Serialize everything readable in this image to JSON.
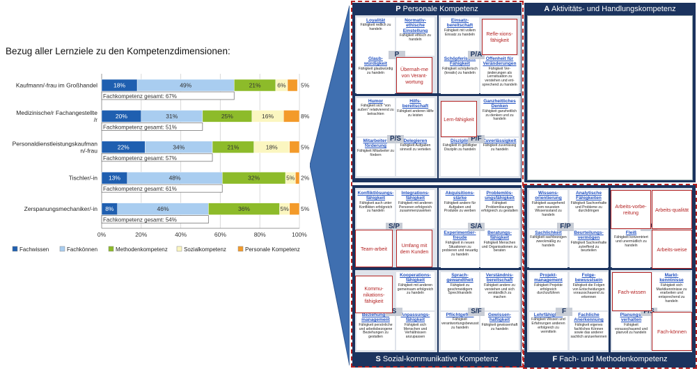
{
  "intro_text": "Bezug aller Lernziele zu den Kompetenzdimensionen:",
  "chart_data": {
    "type": "bar",
    "orientation": "horizontal",
    "stacked": true,
    "categories": [
      "Kaufmann/-frau im Großhandel",
      "Medizinische/r Fachangestellte/r",
      "Personaldienstleistungskaufman n/-frau",
      "Tischler/-in",
      "Zerspanungsmechaniker/-in"
    ],
    "series": [
      {
        "name": "Fachwissen",
        "color": "#1f5fb0",
        "values": [
          18,
          20,
          22,
          13,
          8
        ],
        "labels": [
          "18%",
          "20%",
          "22%",
          "13%",
          "8%"
        ]
      },
      {
        "name": "Fachkönnen",
        "color": "#a9cdf0",
        "values": [
          49,
          31,
          34,
          48,
          46
        ],
        "labels": [
          "49%",
          "31%",
          "34%",
          "48%",
          "46%"
        ]
      },
      {
        "name": "Methodenkompetenz",
        "color": "#8dbb2a",
        "values": [
          21,
          25,
          21,
          32,
          36
        ],
        "labels": [
          "21%",
          "25%",
          "21%",
          "32%",
          "36%"
        ]
      },
      {
        "name": "Sozialkompetenz",
        "color": "#fbf6c0",
        "values": [
          6,
          16,
          18,
          5,
          5
        ],
        "labels": [
          "6%",
          "16%",
          "18%",
          "5%",
          "5%"
        ]
      },
      {
        "name": "Personale Kompetenz",
        "color": "#f39a2a",
        "values": [
          5,
          8,
          5,
          2,
          5
        ],
        "labels": [
          "5%",
          "8%",
          "5%",
          "2%",
          "5%"
        ]
      }
    ],
    "subtotals": [
      "Fachkompetenz gesamt: 67%",
      "Fachkompetenz gesamt: 51%",
      "Fachkompetenz gesamt: 57%",
      "Fachkompetenz gesamt: 61%",
      "Fachkompetenz gesamt: 54%"
    ],
    "xticks": [
      "0%",
      "20%",
      "40%",
      "60%",
      "80%",
      "100%"
    ],
    "xlim": [
      0,
      100
    ],
    "grid": true,
    "legend_position": "bottom"
  },
  "competence": {
    "quadrants": {
      "P": {
        "letter": "P",
        "title": "Personale Kompetenz"
      },
      "A": {
        "letter": "A",
        "title": "Aktivitäts- und Handlungskompetenz"
      },
      "S": {
        "letter": "S",
        "title": "Sozial-kommunikative Kompetenz"
      },
      "F": {
        "letter": "F",
        "title": "Fach- und Methodenkompetenz"
      }
    },
    "codes": [
      "P",
      "P/A",
      "P/S",
      "P/F",
      "S/P",
      "S/A",
      "S",
      "S/F",
      "F/P",
      "F/A",
      "F",
      "F/S"
    ],
    "cells": [
      {
        "t": "Loyalität",
        "d": "Fähigkeit redlich zu handeln"
      },
      {
        "t": "Normativ-ethische Einstellung",
        "d": "Fähigkeit ethisch zu handeln"
      },
      {
        "t": "Einsatz-bereitschaft",
        "d": "Fähigkeit mit vollem Einsatz zu handeln"
      },
      {
        "t": "Glaub-würdigkeit",
        "d": "Fähigkeit glaubwürdig zu handeln"
      },
      {
        "t": "Schöpferische Fähigkeit",
        "d": "Fähigkeit schöpferisch (kreativ) zu handeln"
      },
      {
        "t": "Offenheit für Veränderungen",
        "d": "Fähigkeit Ver-änderungen als Lernsituation zu verstehen und ent-sprechend zu handeln"
      },
      {
        "t": "Humor",
        "d": "Fähigkeit sich \"von außen\" relativierend zu betrachten"
      },
      {
        "t": "Hilfs-bereitschaft",
        "d": "Fähigkeit anderen Hilfe zu leisten"
      },
      {
        "t": "Ganzheitliches Denken",
        "d": "Fähigkeit ganzheitlich zu denken und zu handeln"
      },
      {
        "t": "Mitarbeiter-förderung",
        "d": "Fähigkeit Mitarbeiter zu fördern"
      },
      {
        "t": "Delegieren",
        "d": "Fähigkeit Aufgaben sinnvoll zu verteilen"
      },
      {
        "t": "Disziplin",
        "d": "Fähigkeit in gebilligter Disziplin zu handeln"
      },
      {
        "t": "Zuverlässigkeit",
        "d": "Fähigkeit zuverlässig zu handeln"
      },
      {
        "t": "Konfliktlösungs-fähigkeit",
        "d": "Fähigkeit auch unter Konflikten erfolgreich zu handeln"
      },
      {
        "t": "Integrations-fähigkeit",
        "d": "Fähigkeit mit anderen Personen erfolgreich zusammenzuwirken"
      },
      {
        "t": "Akquisitions-stärke",
        "d": "Fähigkeit andere für Aufgaben und Produkte zu werben"
      },
      {
        "t": "Problemlös-ungsfähigkeit",
        "d": "Fähigkeit Problemlösungen erfolgreich zu gestalten"
      },
      {
        "t": "Experimentier-freude",
        "d": "Fähigkeit in neuen Situationen zu probieren und neuartig zu handeln"
      },
      {
        "t": "Beratungs-fähigkeit",
        "d": "Fähigkeit Menschen und Organisationen zu beraten"
      },
      {
        "t": "Kooperations-fähigkeit",
        "d": "Fähigkeit mit anderen gemeinsam erfolgreich zu handeln"
      },
      {
        "t": "Sprach-gewandtheit",
        "d": "Fähigkeit zu geschmeidigem Sprechhandeln"
      },
      {
        "t": "Verständnis-bereitschaft",
        "d": "Fähigkeit andere zu verstehen und sich verständlich zu machen"
      },
      {
        "t": "Beziehungs-management",
        "d": "Fähigkeit persönliche und arbeitsbezogene Beziehungen zu gestalten"
      },
      {
        "t": "Anpassungs-fähigkeit",
        "d": "Fähigkeit sich Menschen und Verhältnissen anzupassen"
      },
      {
        "t": "Pflichtgefühl",
        "d": "Fähigkeit verantwortungsbewusst zu handeln"
      },
      {
        "t": "Gewissen-haftigkeit",
        "d": "Fähigkeit gewissenhaft zu handeln"
      },
      {
        "t": "Wissens-orientierung",
        "d": "Fähigkeit ausgehend vom neuesten Wissensstand zu handeln"
      },
      {
        "t": "Analytische Fähigkeiten",
        "d": "Fähigkeit Sachverhalte und Probleme zu durchdringen"
      },
      {
        "t": "Sachlichkeit",
        "d": "Fähigkeit sachbezogen zweckmäßig zu handeln"
      },
      {
        "t": "Beurteilungs-vermögen",
        "d": "Fähigkeit Sachverhalte zutreffend zu beurteilen"
      },
      {
        "t": "Fleiß",
        "d": "Fähigkeit konzentriert und unermüdlich zu handeln"
      },
      {
        "t": "Markt-kenntnisse",
        "d": "Fähigkeit sich Marktkenntnisse zu erarbeiten und entsprechend zu handeln"
      },
      {
        "t": "Projekt-management",
        "d": "Fähigkeit Projekte erfolgreich durchzuführen"
      },
      {
        "t": "Folge-bewusstsein",
        "d": "Fähigkeit die Folgen von Entscheidungen vorausschauend zu erkennen"
      },
      {
        "t": "Lehrfähigkeit",
        "d": "Fähigkeit Wissen und Erfahrungen anderen erfolgreich zu vermitteln"
      },
      {
        "t": "Fachliche Anerkennung",
        "d": "Fähigkeit eigenes fachliches Können sowie das anderer sachlich anzuerkennen"
      },
      {
        "t": "Planungs-verhalten",
        "d": "Fähigkeit vorausschauend und planvoll zu handeln"
      }
    ],
    "highlights": [
      "Refle-xions-fähigkeit",
      "Übernah-me von Verant-wortung",
      "Lern-fähigkeit",
      "Team-arbeit",
      "Umfang mit dem Kunden",
      "Kommu-nikations-fähigkeit",
      "Arbeits-vorbe-reitung",
      "Arbeits-qualität",
      "Arbeits-weise",
      "Fach-wissen",
      "Fach-können"
    ]
  }
}
